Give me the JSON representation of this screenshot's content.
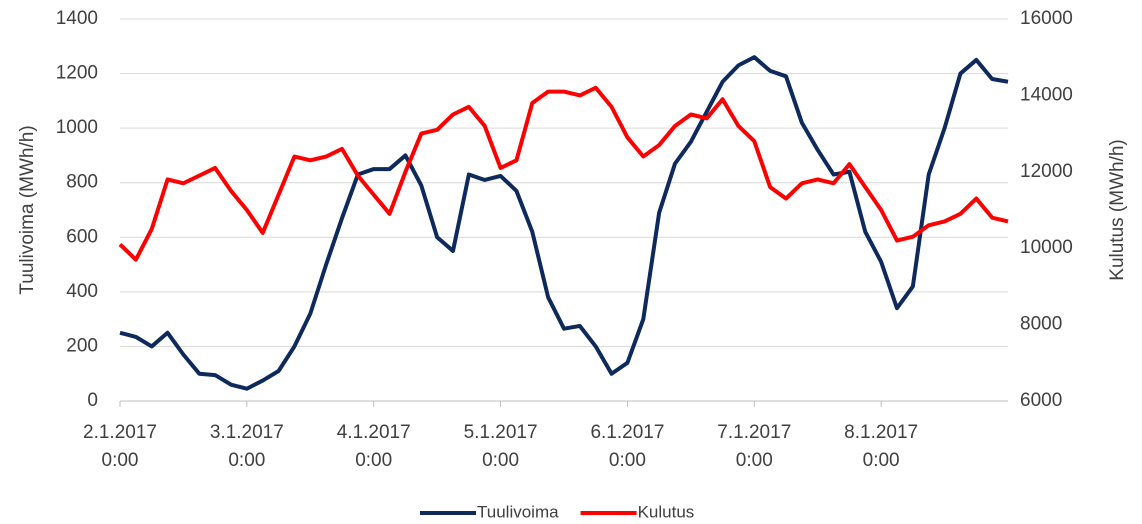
{
  "chart_data": {
    "type": "line",
    "x": [
      0,
      3,
      6,
      9,
      12,
      15,
      18,
      21,
      24,
      27,
      30,
      33,
      36,
      39,
      42,
      45,
      48,
      51,
      54,
      57,
      60,
      63,
      66,
      69,
      72,
      75,
      78,
      81,
      84,
      87,
      90,
      93,
      96,
      99,
      102,
      105,
      108,
      111,
      114,
      117,
      120,
      123,
      126,
      129,
      132,
      135,
      138,
      141,
      144,
      147,
      150,
      153,
      156,
      159,
      162,
      165,
      168
    ],
    "xlim": [
      0,
      168
    ],
    "xticks": [
      {
        "value": 0,
        "label": "2.1.2017 0:00"
      },
      {
        "value": 24,
        "label": "3.1.2017 0:00"
      },
      {
        "value": 48,
        "label": "4.1.2017 0:00"
      },
      {
        "value": 72,
        "label": "5.1.2017 0:00"
      },
      {
        "value": 96,
        "label": "6.1.2017 0:00"
      },
      {
        "value": 120,
        "label": "7.1.2017 0:00"
      },
      {
        "value": 144,
        "label": "8.1.2017 0:00"
      }
    ],
    "ylabel": "Tuulivoima (MWh/h)",
    "y2label": "Kulutus (MWh/h)",
    "ylim": [
      0,
      1400
    ],
    "yticks": [
      0,
      200,
      400,
      600,
      800,
      1000,
      1200,
      1400
    ],
    "y2lim": [
      6000,
      16000
    ],
    "y2ticks": [
      6000,
      8000,
      10000,
      12000,
      14000,
      16000
    ],
    "grid": true,
    "legend": "bottom",
    "series": [
      {
        "name": "Tuulivoima",
        "color": "#0e2a5c",
        "values": [
          250,
          235,
          200,
          250,
          170,
          100,
          95,
          60,
          45,
          75,
          110,
          200,
          320,
          500,
          670,
          830,
          850,
          850,
          900,
          790,
          600,
          550,
          830,
          810,
          825,
          770,
          620,
          380,
          265,
          275,
          200,
          100,
          140,
          300,
          690,
          870,
          950,
          1060,
          1170,
          1230,
          1260,
          1210,
          1190,
          1020,
          920,
          830,
          840,
          620,
          510,
          340,
          420,
          830,
          1000,
          1200,
          1250,
          1180,
          1170
        ]
      },
      {
        "name": "Kulutus",
        "color": "#ff0000",
        "axis": "y2",
        "values": [
          10100,
          9700,
          10500,
          11800,
          11700,
          11900,
          12100,
          11500,
          11000,
          10400,
          11400,
          12400,
          12300,
          12400,
          12600,
          11900,
          11400,
          10900,
          12000,
          13000,
          13100,
          13500,
          13700,
          13200,
          12100,
          12300,
          13800,
          14100,
          14100,
          14000,
          14200,
          13700,
          12900,
          12400,
          12700,
          13200,
          13500,
          13400,
          13900,
          13200,
          12800,
          11600,
          11300,
          11700,
          11800,
          11700,
          12200,
          11600,
          11000,
          10200,
          10300,
          10600,
          10700,
          10900,
          11300,
          10800,
          10700
        ]
      }
    ]
  }
}
